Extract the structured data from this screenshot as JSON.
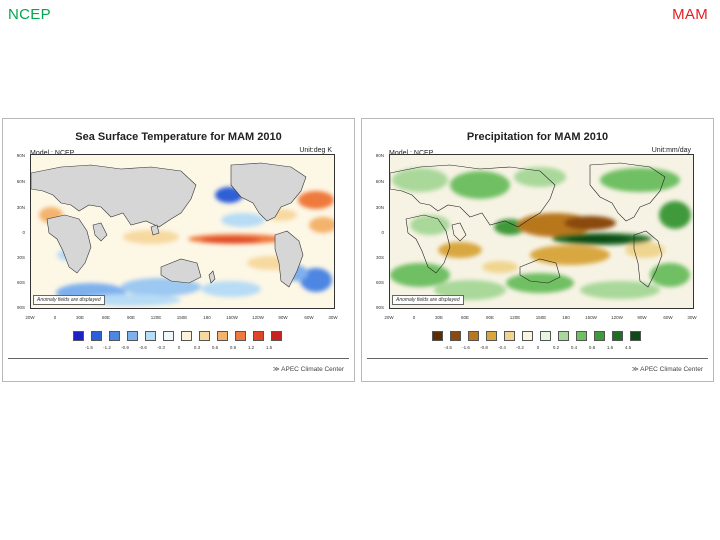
{
  "header": {
    "left_label": "NCEP",
    "right_label": "MAM"
  },
  "panels": [
    {
      "title": "Sea Surface Temperature for MAM 2010",
      "model": "Model : NCEP",
      "unit": "Unit:deg K",
      "note": "Anomaly fields are displayed",
      "credit": "≫ APEC Climate Center",
      "lat_labels": [
        "90N",
        "60N",
        "30N",
        "0",
        "30S",
        "60S",
        "90S"
      ],
      "lon_labels": [
        "20W",
        "0",
        "30E",
        "60E",
        "90E",
        "120E",
        "150E",
        "180",
        "150W",
        "120W",
        "90W",
        "60W",
        "30W"
      ],
      "legend_colors": [
        "#1f1fc7",
        "#2d5fd6",
        "#4d86e3",
        "#7eb0ee",
        "#b7dcf5",
        "#eef7fb",
        "#fbf3dc",
        "#f7d9a0",
        "#f4b36d",
        "#ef7a3e",
        "#e0452a",
        "#c8211e"
      ],
      "legend_ticks": [
        "-1.5",
        "-1.2",
        "-0.9",
        "-0.6",
        "-0.3",
        "0",
        "0.3",
        "0.6",
        "0.9",
        "1.2",
        "1.5"
      ]
    },
    {
      "title": "Precipitation for MAM 2010",
      "model": "Model : NCEP",
      "unit": "Unit:mm/day",
      "note": "Anomaly fields are displayed",
      "credit": "≫ APEC Climate Center",
      "lat_labels": [
        "90N",
        "60N",
        "30N",
        "0",
        "30S",
        "60S",
        "90S"
      ],
      "lon_labels": [
        "20W",
        "0",
        "30E",
        "60E",
        "90E",
        "120E",
        "150E",
        "180",
        "150W",
        "120W",
        "90W",
        "60W",
        "30W"
      ],
      "legend_colors": [
        "#5a2d05",
        "#8a4a0e",
        "#b9771f",
        "#d9a741",
        "#efd58f",
        "#faf4e3",
        "#e7f4df",
        "#a9d89a",
        "#6fbf63",
        "#3f9a3a",
        "#1f6e25",
        "#0d4a16"
      ],
      "legend_ticks": [
        "-4.5",
        "-1.6",
        "-0.8",
        "-0.4",
        "-0.2",
        "0",
        "0.2",
        "0.4",
        "0.8",
        "1.6",
        "4.5"
      ]
    }
  ]
}
